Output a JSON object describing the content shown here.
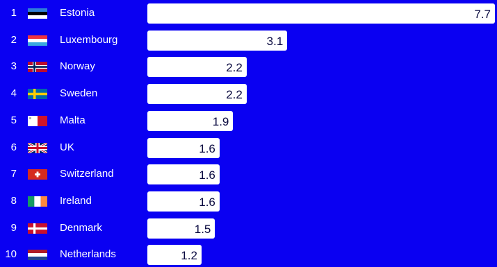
{
  "chart_data": {
    "type": "bar",
    "orientation": "horizontal",
    "title": "",
    "xlabel": "",
    "ylabel": "",
    "xlim": [
      0,
      7.7
    ],
    "grid": false,
    "legend": "none",
    "colors": {
      "background": "#0a00f2",
      "bar": "#ffffff",
      "label_text": "#ffffff",
      "value_text": "#0a0a40"
    },
    "rows": [
      {
        "rank": "1",
        "country": "Estonia",
        "flag": "estonia-flag",
        "value": 7.7,
        "value_label": "7.7"
      },
      {
        "rank": "2",
        "country": "Luxembourg",
        "flag": "luxembourg-flag",
        "value": 3.1,
        "value_label": "3.1"
      },
      {
        "rank": "3",
        "country": "Norway",
        "flag": "norway-flag",
        "value": 2.2,
        "value_label": "2.2"
      },
      {
        "rank": "4",
        "country": "Sweden",
        "flag": "sweden-flag",
        "value": 2.2,
        "value_label": "2.2"
      },
      {
        "rank": "5",
        "country": "Malta",
        "flag": "malta-flag",
        "value": 1.9,
        "value_label": "1.9"
      },
      {
        "rank": "6",
        "country": "UK",
        "flag": "uk-flag",
        "value": 1.6,
        "value_label": "1.6"
      },
      {
        "rank": "7",
        "country": "Switzerland",
        "flag": "switzerland-flag",
        "value": 1.6,
        "value_label": "1.6"
      },
      {
        "rank": "8",
        "country": "Ireland",
        "flag": "ireland-flag",
        "value": 1.6,
        "value_label": "1.6"
      },
      {
        "rank": "9",
        "country": "Denmark",
        "flag": "denmark-flag",
        "value": 1.5,
        "value_label": "1.5"
      },
      {
        "rank": "10",
        "country": "Netherlands",
        "flag": "netherlands-flag",
        "value": 1.2,
        "value_label": "1.2"
      }
    ]
  }
}
